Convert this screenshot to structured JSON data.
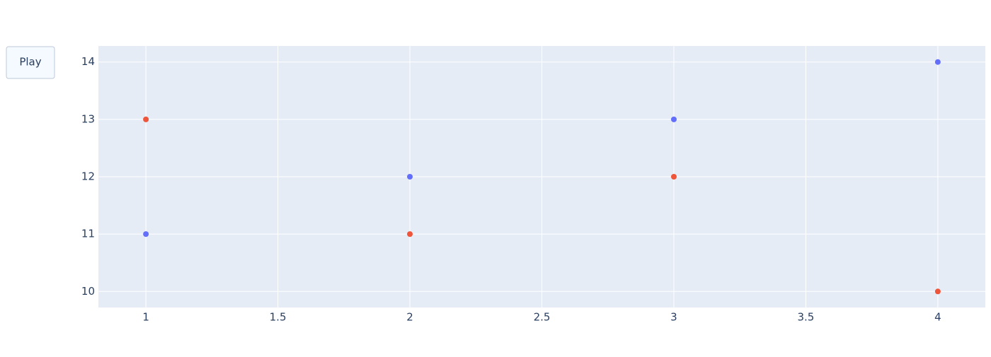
{
  "chart_data": {
    "type": "scatter",
    "play_button": "Play",
    "x": [
      1,
      2,
      3,
      4
    ],
    "series": [
      {
        "color": "#636efa",
        "values": [
          11,
          12,
          13,
          14
        ]
      },
      {
        "color": "#ef553b",
        "values": [
          13,
          11,
          12,
          10
        ]
      }
    ],
    "xlim": [
      0.82,
      4.18
    ],
    "xticks": [
      1,
      1.5,
      2,
      2.5,
      3,
      3.5,
      4
    ],
    "ylim": [
      9.72,
      14.28
    ],
    "yticks": [
      10,
      11,
      12,
      13,
      14
    ],
    "grid": true,
    "background": "#e5ecf6"
  }
}
